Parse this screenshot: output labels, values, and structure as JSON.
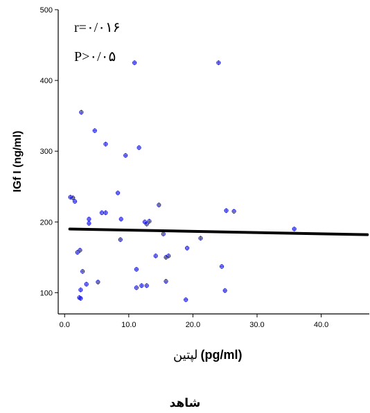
{
  "chart_data": {
    "type": "scatter",
    "ylabel": "IGf I (ng/ml)",
    "xlabel_unit": "(pg/ml)",
    "xlabel_fa": "لپتین",
    "caption": "شاهد",
    "annotations": [
      "r=۰/۰۱۶",
      "P>۰/۰۵"
    ],
    "xlim": [
      -1,
      47.5
    ],
    "ylim": [
      70,
      500
    ],
    "xticks": [
      0.0,
      10.0,
      20.0,
      30.0,
      40.0
    ],
    "xtick_labels": [
      "0.0",
      "10.0",
      "20.0",
      "30.0",
      "40.0"
    ],
    "yticks": [
      100,
      200,
      300,
      400,
      500
    ],
    "ytick_labels": [
      "100",
      "200",
      "300",
      "400",
      "500"
    ],
    "grid": false,
    "points": [
      {
        "x": 0.9,
        "y": 235
      },
      {
        "x": 1.3,
        "y": 234
      },
      {
        "x": 1.6,
        "y": 229
      },
      {
        "x": 2.0,
        "y": 157
      },
      {
        "x": 2.4,
        "y": 160
      },
      {
        "x": 2.3,
        "y": 93
      },
      {
        "x": 2.5,
        "y": 92
      },
      {
        "x": 2.5,
        "y": 104
      },
      {
        "x": 2.6,
        "y": 355
      },
      {
        "x": 2.8,
        "y": 130
      },
      {
        "x": 3.4,
        "y": 112
      },
      {
        "x": 3.8,
        "y": 198
      },
      {
        "x": 3.8,
        "y": 204
      },
      {
        "x": 4.7,
        "y": 329
      },
      {
        "x": 5.2,
        "y": 115
      },
      {
        "x": 5.8,
        "y": 213
      },
      {
        "x": 6.4,
        "y": 213
      },
      {
        "x": 6.4,
        "y": 310
      },
      {
        "x": 8.3,
        "y": 241
      },
      {
        "x": 8.7,
        "y": 175
      },
      {
        "x": 8.8,
        "y": 204
      },
      {
        "x": 9.5,
        "y": 294
      },
      {
        "x": 10.9,
        "y": 425
      },
      {
        "x": 11.2,
        "y": 133
      },
      {
        "x": 11.2,
        "y": 107
      },
      {
        "x": 11.6,
        "y": 305
      },
      {
        "x": 12.0,
        "y": 110
      },
      {
        "x": 12.5,
        "y": 200
      },
      {
        "x": 12.8,
        "y": 197
      },
      {
        "x": 12.8,
        "y": 110
      },
      {
        "x": 13.2,
        "y": 201
      },
      {
        "x": 14.2,
        "y": 152
      },
      {
        "x": 14.7,
        "y": 224
      },
      {
        "x": 15.4,
        "y": 183
      },
      {
        "x": 15.8,
        "y": 116
      },
      {
        "x": 15.8,
        "y": 150
      },
      {
        "x": 16.2,
        "y": 152
      },
      {
        "x": 18.9,
        "y": 90
      },
      {
        "x": 19.1,
        "y": 163
      },
      {
        "x": 21.2,
        "y": 177
      },
      {
        "x": 24.0,
        "y": 425
      },
      {
        "x": 24.5,
        "y": 137
      },
      {
        "x": 25.0,
        "y": 103
      },
      {
        "x": 25.2,
        "y": 216
      },
      {
        "x": 26.4,
        "y": 215
      },
      {
        "x": 35.8,
        "y": 190
      }
    ],
    "fit_line": {
      "x": [
        0.8,
        47.2
      ],
      "y": [
        190,
        182
      ]
    },
    "point_color": "#1f1fe0",
    "line_color": "#000000"
  }
}
